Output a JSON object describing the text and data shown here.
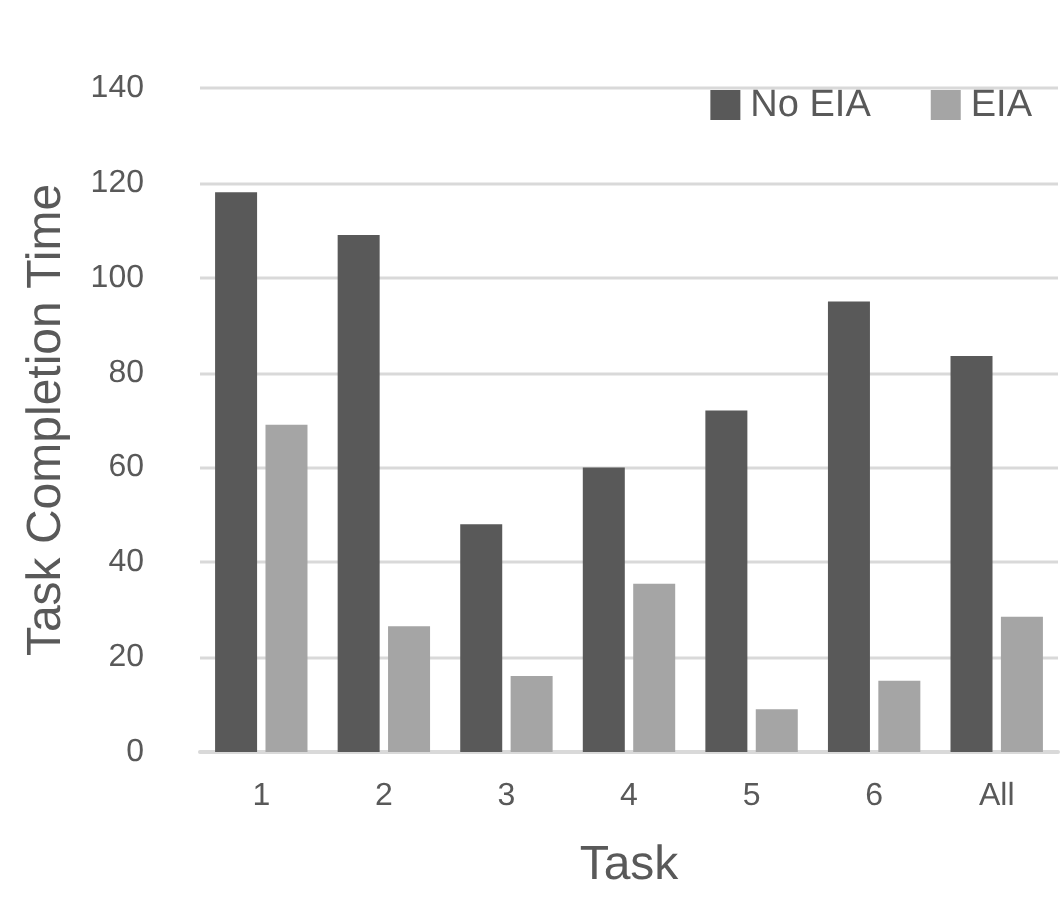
{
  "chart_data": {
    "type": "bar",
    "xlabel": "Task",
    "ylabel": "Task Completion Time",
    "categories": [
      "1",
      "2",
      "3",
      "4",
      "5",
      "6",
      "All"
    ],
    "series": [
      {
        "name": "No EIA",
        "color": "#595959",
        "values": [
          118,
          109,
          48,
          60,
          72,
          95,
          83.5
        ]
      },
      {
        "name": "EIA",
        "color": "#a5a5a5",
        "values": [
          69,
          26.5,
          16,
          35.5,
          9,
          15,
          28.5
        ]
      }
    ],
    "ylim": [
      0,
      140
    ],
    "yticks": [
      0,
      20,
      40,
      60,
      80,
      100,
      120,
      140
    ],
    "grid": "y",
    "legend": "top right"
  }
}
